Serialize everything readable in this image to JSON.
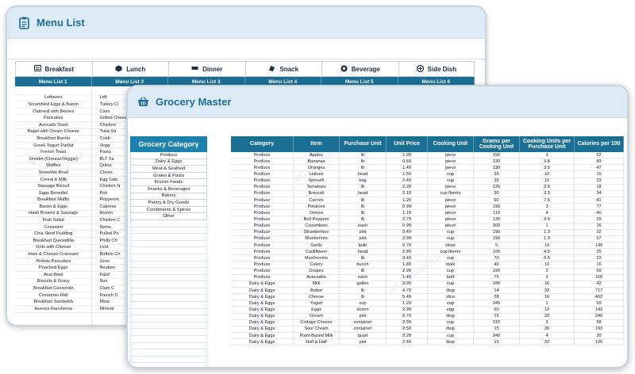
{
  "menu_window": {
    "title": "Menu List",
    "tabs": [
      {
        "label": "Breakfast",
        "icon": "plate-icon"
      },
      {
        "label": "Lunch",
        "icon": "lunchbox-icon"
      },
      {
        "label": "Dinner",
        "icon": "cutlery-icon"
      },
      {
        "label": "Snack",
        "icon": "snack-icon"
      },
      {
        "label": "Beverage",
        "icon": "cup-icon"
      },
      {
        "label": "Side Dish",
        "icon": "dish-icon"
      }
    ],
    "list_headers": [
      "Menu List 1",
      "Menu List 2",
      "Menu List 3",
      "Menu List 4",
      "Menu List 5",
      "Menu List 6"
    ],
    "breakfast_items": [
      "",
      "Leftovers",
      "Scrambled Eggs & Bacon",
      "Oatmeal with Berries",
      "Pancakes",
      "Avocado Toast",
      "Bagel with Cream Cheese",
      "Breakfast Burrito",
      "Greek Yogurt Parfait",
      "French Toast",
      "Omelet (Cheese/Veggie)",
      "Waffles",
      "Smoothie Bowl",
      "Cereal & Milk",
      "Sausage Biscuit",
      "Eggs Benedict",
      "Breakfast Muffin",
      "Bacon & Eggs",
      "Hash Browns & Sausage",
      "Fruit Salad",
      "Croissant",
      "Chia Seed Pudding",
      "Breakfast Quesadilla",
      "Grits with Cheese",
      "Ham & Cheese Croissant",
      "Protein Pancakes",
      "Poached Eggs",
      "Acai Bowl",
      "Biscuits & Gravy",
      "Breakfast Casserole",
      "Cinnamon Roll",
      "Breakfast Sandwich",
      "Huevos Rancheros"
    ],
    "lunch_items_partial": [
      "",
      "Left",
      "Turkey Cl",
      "Caes",
      "Grilled Chees",
      "Chicken",
      "Tuna Sa",
      "Cobb",
      "Vegg",
      "Pasta",
      "BLT Sa",
      "Quino",
      "Chees",
      "Egg Sala",
      "Chicken N",
      "Pok",
      "Pepperon",
      "Caprese",
      "Humm",
      "Chicken C",
      "Spina",
      "Pulled Po",
      "Philly Ch",
      "Lent",
      "Buffalo Ch",
      "Gree",
      "Reuben",
      "Falaf",
      "Sus",
      "Clam C",
      "French D",
      "Meat",
      "Minestr"
    ]
  },
  "grocery_window": {
    "title": "Grocery Master",
    "category_header": "Grocery Category",
    "categories": [
      "Produce",
      "Dairy & Eggs",
      "Meat & Seafood",
      "Grains & Pasta",
      "Frozen Foods",
      "Snacks & Beverages",
      "Bakery",
      "Pantry & Dry Goods",
      "Condiments & Spices",
      "Other"
    ],
    "columns": [
      "Category",
      "Item",
      "Purchase Unit",
      "Unit Price",
      "Cooking Unit",
      "Grams per Cooking Unit",
      "Cooking Units per Purchase Unit",
      "Calories per 100"
    ],
    "rows": [
      [
        "Produce",
        "Apples",
        "lb",
        "1.99",
        "piece",
        "150",
        "3",
        "52"
      ],
      [
        "Produce",
        "Bananas",
        "lb",
        "0.69",
        "piece",
        "120",
        "3.8",
        "89"
      ],
      [
        "Produce",
        "Oranges",
        "lb",
        "1.49",
        "piece",
        "130",
        "3.5",
        "47"
      ],
      [
        "Produce",
        "Lettuce",
        "head",
        "1.59",
        "cup",
        "55",
        "10",
        "15"
      ],
      [
        "Produce",
        "Spinach",
        "bag",
        "2.49",
        "cup",
        "30",
        "10",
        "23"
      ],
      [
        "Produce",
        "Tomatoes",
        "lb",
        "2.29",
        "piece",
        "125",
        "3.6",
        "18"
      ],
      [
        "Produce",
        "Broccoli",
        "head",
        "2.19",
        "cup florets",
        "90",
        "3.3",
        "34"
      ],
      [
        "Produce",
        "Carrots",
        "lb",
        "1.29",
        "piece",
        "60",
        "7.5",
        "41"
      ],
      [
        "Produce",
        "Potatoes",
        "lb",
        "0.99",
        "piece",
        "150",
        "3",
        "77"
      ],
      [
        "Produce",
        "Onions",
        "lb",
        "1.19",
        "piece",
        "110",
        "4",
        "40"
      ],
      [
        "Produce",
        "Bell Peppers",
        "lb",
        "2.79",
        "piece",
        "120",
        "3.5",
        "26"
      ],
      [
        "Produce",
        "Cucumbers",
        "each",
        "0.99",
        "piece",
        "300",
        "1",
        "16"
      ],
      [
        "Produce",
        "Strawberries",
        "pint",
        "3.49",
        "cup",
        "150",
        "1.3",
        "32"
      ],
      [
        "Produce",
        "Blueberries",
        "pint",
        "3.99",
        "cup",
        "150",
        "1.3",
        "57"
      ],
      [
        "Produce",
        "Garlic",
        "bulb",
        "0.79",
        "clove",
        "5",
        "10",
        "149"
      ],
      [
        "Produce",
        "Cauliflower",
        "head",
        "2.89",
        "cup florets",
        "100",
        "4.5",
        "25"
      ],
      [
        "Produce",
        "Mushrooms",
        "lb",
        "3.49",
        "cup",
        "70",
        "6.5",
        "22"
      ],
      [
        "Produce",
        "Celery",
        "bunch",
        "1.89",
        "stalk",
        "40",
        "10",
        "16"
      ],
      [
        "Produce",
        "Grapes",
        "lb",
        "2.99",
        "cup",
        "150",
        "3",
        "69"
      ],
      [
        "Produce",
        "Avocados",
        "each",
        "1.49",
        "half",
        "75",
        "2",
        "160"
      ],
      [
        "Dairy & Eggs",
        "Milk",
        "gallon",
        "3.99",
        "cup",
        "240",
        "16",
        "42"
      ],
      [
        "Dairy & Eggs",
        "Butter",
        "lb",
        "4.79",
        "tbsp",
        "14",
        "32",
        "717"
      ],
      [
        "Dairy & Eggs",
        "Cheese",
        "lb",
        "5.49",
        "slice",
        "28",
        "16",
        "402"
      ],
      [
        "Dairy & Eggs",
        "Yogurt",
        "cup",
        "1.29",
        "cup",
        "245",
        "1",
        "59"
      ],
      [
        "Dairy & Eggs",
        "Eggs",
        "dozen",
        "2.99",
        "egg",
        "50",
        "12",
        "143"
      ],
      [
        "Dairy & Eggs",
        "Cream",
        "pint",
        "2.79",
        "tbsp",
        "15",
        "32",
        "340"
      ],
      [
        "Dairy & Eggs",
        "Cottage Cheese",
        "container",
        "2.99",
        "cup",
        "210",
        "2",
        "98"
      ],
      [
        "Dairy & Eggs",
        "Sour Cream",
        "container",
        "2.59",
        "tbsp",
        "15",
        "30",
        "193"
      ],
      [
        "Dairy & Eggs",
        "Plant-Based Milk",
        "quart",
        "3.29",
        "cup",
        "240",
        "4",
        "30"
      ],
      [
        "Dairy & Eggs",
        "Half & Half",
        "pint",
        "2.49",
        "tbsp",
        "15",
        "32",
        "130"
      ]
    ]
  },
  "colors": {
    "header_bg": "#dcebf5",
    "title_text": "#1c6e98",
    "table_header": "#1b6f95",
    "category_header": "#1b82b0"
  }
}
